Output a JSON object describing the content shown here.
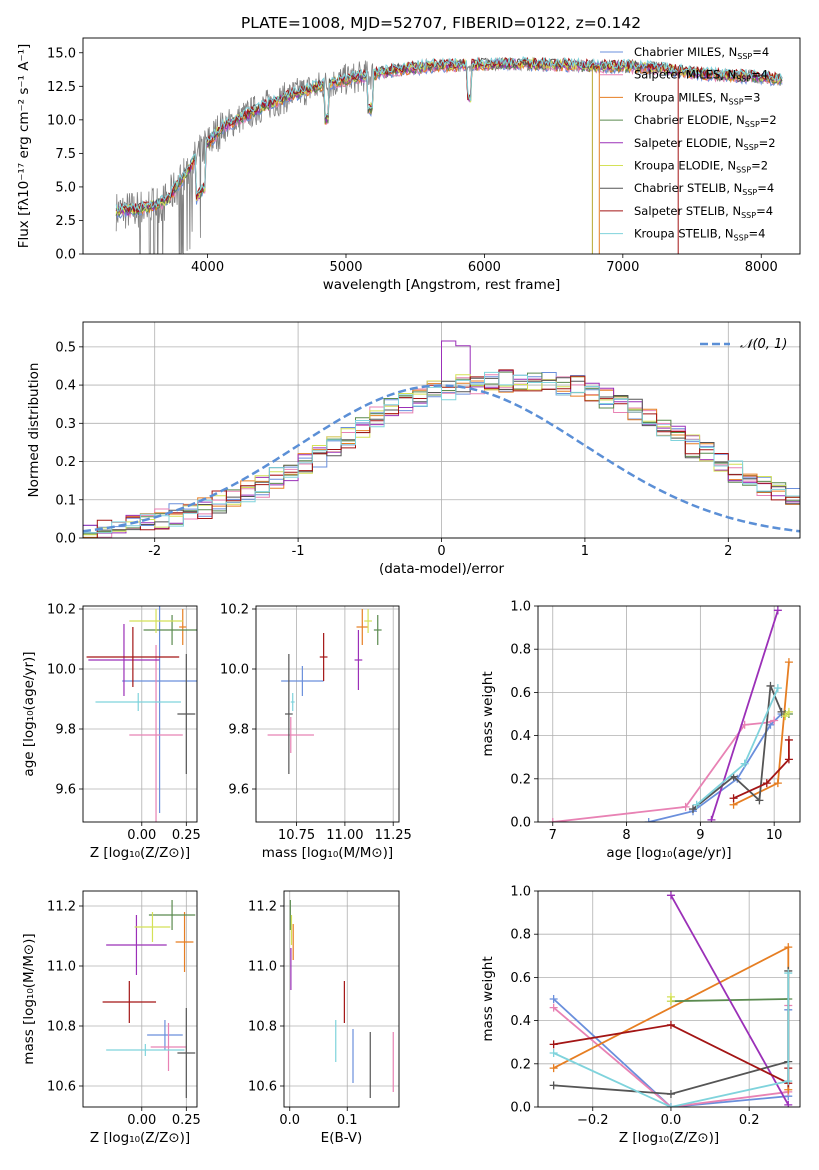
{
  "colors": {
    "Chabrier MILES": "#6a8fdc",
    "Salpeter MILES": "#e882b4",
    "Kroupa MILES": "#e67e22",
    "Chabrier ELODIE": "#5a8a4f",
    "Salpeter ELODIE": "#9b30b8",
    "Kroupa ELODIE": "#d4e157",
    "Chabrier STELIB": "#555555",
    "Salpeter STELIB": "#a31515",
    "Kroupa STELIB": "#7fd3dc",
    "data": "#7f7f7f",
    "normal": "#5b8fd6"
  },
  "chart_data": [
    {
      "type": "line",
      "title": "PLATE=1008, MJD=52707, FIBERID=0122, z=0.142",
      "xlabel": "wavelength [Angstrom, rest frame]",
      "ylabel": "Flux [fλ10⁻¹⁷ erg cm⁻² s⁻¹ A⁻¹]",
      "xlim": [
        3100,
        8280
      ],
      "ylim": [
        0,
        16.1
      ],
      "xticks": [
        4000,
        5000,
        6000,
        7000,
        8000
      ],
      "yticks": [
        0.0,
        2.5,
        5.0,
        7.5,
        10.0,
        12.5,
        15.0
      ],
      "legend": [
        {
          "model": "Chabrier MILES",
          "label": "Chabrier MILES, N",
          "n": "=4"
        },
        {
          "model": "Salpeter MILES",
          "label": "Salpeter MILES, N",
          "n": "=4"
        },
        {
          "model": "Kroupa MILES",
          "label": "Kroupa MILES, N",
          "n": "=3"
        },
        {
          "model": "Chabrier ELODIE",
          "label": "Chabrier ELODIE, N",
          "n": "=2"
        },
        {
          "model": "Salpeter ELODIE",
          "label": "Salpeter ELODIE, N",
          "n": "=2"
        },
        {
          "model": "Kroupa ELODIE",
          "label": "Kroupa ELODIE, N",
          "n": "=2"
        },
        {
          "model": "Chabrier STELIB",
          "label": "Chabrier STELIB, N",
          "n": "=4"
        },
        {
          "model": "Salpeter STELIB",
          "label": "Salpeter STELIB, N",
          "n": "=4"
        },
        {
          "model": "Kroupa STELIB",
          "label": "Kroupa STELIB, N",
          "n": "=4"
        }
      ],
      "legend_sub": "SSP",
      "continuum": {
        "x": [
          3340,
          3500,
          3700,
          3950,
          4100,
          4400,
          4700,
          5000,
          5300,
          5600,
          5900,
          6200,
          6500,
          6800,
          7000,
          7300,
          7600,
          7800,
          8000,
          8150
        ],
        "y": [
          3.2,
          3.3,
          3.9,
          7.6,
          9.4,
          11.0,
          12.2,
          13.0,
          13.6,
          14.0,
          14.1,
          14.2,
          14.1,
          14.0,
          14.0,
          13.8,
          13.4,
          13.3,
          13.2,
          13.0
        ]
      }
    },
    {
      "type": "bar",
      "xlabel": "(data-model)/error",
      "ylabel": "Normed distribution",
      "xlim": [
        -2.5,
        2.5
      ],
      "ylim": [
        0,
        0.565
      ],
      "xticks": [
        -2,
        -1,
        0,
        1,
        2
      ],
      "yticks": [
        0.0,
        0.1,
        0.2,
        0.3,
        0.4,
        0.5
      ],
      "legend": "𝒩(0, 1)",
      "bins": {
        "start": -2.5,
        "width": 0.1
      },
      "envelope": [
        0.02,
        0.025,
        0.03,
        0.035,
        0.045,
        0.05,
        0.06,
        0.07,
        0.08,
        0.095,
        0.11,
        0.12,
        0.135,
        0.155,
        0.175,
        0.195,
        0.215,
        0.24,
        0.265,
        0.29,
        0.315,
        0.335,
        0.355,
        0.37,
        0.385,
        0.39,
        0.4,
        0.405,
        0.405,
        0.41,
        0.41,
        0.41,
        0.405,
        0.4,
        0.395,
        0.385,
        0.37,
        0.355,
        0.335,
        0.315,
        0.29,
        0.265,
        0.24,
        0.22,
        0.195,
        0.175,
        0.155,
        0.135,
        0.12,
        0.105
      ]
    },
    {
      "type": "scatter",
      "xlabel": "Z [log₁₀(Z/Z⊙)]",
      "ylabel": "age  [log₁₀(age/yr)]",
      "xlim": [
        -0.33,
        0.31
      ],
      "ylim": [
        9.49,
        10.21
      ],
      "xticks": [
        "0.00",
        "0.25"
      ],
      "yticks": [
        "9.6",
        "9.8",
        "10.0",
        "10.2"
      ],
      "points": [
        {
          "m": "Chabrier MILES",
          "x": 0.1,
          "y": 9.96,
          "ex": 0.21,
          "ey": 0.44
        },
        {
          "m": "Salpeter MILES",
          "x": 0.08,
          "y": 9.78,
          "ex": 0.15,
          "ey": 0.3
        },
        {
          "m": "Kroupa MILES",
          "x": 0.23,
          "y": 10.14,
          "ex": 0.02,
          "ey": 0.06
        },
        {
          "m": "Chabrier ELODIE",
          "x": 0.17,
          "y": 10.13,
          "ex": 0.16,
          "ey": 0.05
        },
        {
          "m": "Salpeter ELODIE",
          "x": -0.1,
          "y": 10.03,
          "ex": 0.2,
          "ey": 0.12
        },
        {
          "m": "Kroupa ELODIE",
          "x": 0.08,
          "y": 10.16,
          "ex": 0.15,
          "ey": 0.04
        },
        {
          "m": "Chabrier STELIB",
          "x": 0.25,
          "y": 9.85,
          "ex": 0.05,
          "ey": 0.2
        },
        {
          "m": "Salpeter STELIB",
          "x": -0.05,
          "y": 10.04,
          "ex": 0.26,
          "ey": 0.1
        },
        {
          "m": "Kroupa STELIB",
          "x": -0.02,
          "y": 9.89,
          "ex": 0.24,
          "ey": 0.03
        }
      ]
    },
    {
      "type": "scatter",
      "xlabel": "mass [log₁₀(M/M⊙)]",
      "xlim": [
        10.54,
        11.28
      ],
      "ylim": [
        9.49,
        10.21
      ],
      "xticks": [
        "10.75",
        "11.00",
        "11.25"
      ],
      "yticks": [
        "9.6",
        "9.8",
        "10.0",
        "10.2"
      ],
      "points": [
        {
          "m": "Chabrier MILES",
          "x": 10.78,
          "y": 9.96,
          "ex": 0.11,
          "ey": 0.05
        },
        {
          "m": "Salpeter MILES",
          "x": 10.72,
          "y": 9.78,
          "ex": 0.12,
          "ey": 0.06
        },
        {
          "m": "Kroupa MILES",
          "x": 11.09,
          "y": 10.14,
          "ex": 0.03,
          "ey": 0.06
        },
        {
          "m": "Chabrier ELODIE",
          "x": 11.17,
          "y": 10.13,
          "ex": 0.02,
          "ey": 0.05
        },
        {
          "m": "Salpeter ELODIE",
          "x": 11.07,
          "y": 10.03,
          "ex": 0.02,
          "ey": 0.1
        },
        {
          "m": "Kroupa ELODIE",
          "x": 11.12,
          "y": 10.16,
          "ex": 0.02,
          "ey": 0.04
        },
        {
          "m": "Chabrier STELIB",
          "x": 10.71,
          "y": 9.85,
          "ex": 0.02,
          "ey": 0.2
        },
        {
          "m": "Salpeter STELIB",
          "x": 10.89,
          "y": 10.04,
          "ex": 0.02,
          "ey": 0.08
        },
        {
          "m": "Kroupa STELIB",
          "x": 10.73,
          "y": 9.89,
          "ex": 0.01,
          "ey": 0.03
        }
      ]
    },
    {
      "type": "line",
      "xlabel": "age  [log₁₀(age/yr)]",
      "ylabel": "mass weight",
      "xlim": [
        6.8,
        10.35
      ],
      "ylim": [
        0,
        1.0
      ],
      "xticks": [
        "7",
        "8",
        "9",
        "10"
      ],
      "yticks": [
        "0.0",
        "0.2",
        "0.4",
        "0.6",
        "0.8",
        "1.0"
      ],
      "series": [
        {
          "m": "Chabrier MILES",
          "x": [
            8.3,
            8.9,
            9.5,
            9.95,
            10.1
          ],
          "y": [
            0.0,
            0.05,
            0.2,
            0.45,
            0.5
          ]
        },
        {
          "m": "Salpeter MILES",
          "x": [
            7.0,
            8.8,
            9.6,
            9.9,
            10.0
          ],
          "y": [
            0.0,
            0.07,
            0.45,
            0.46,
            0.47
          ]
        },
        {
          "m": "Kroupa MILES",
          "x": [
            9.45,
            10.05,
            10.2
          ],
          "y": [
            0.08,
            0.18,
            0.74
          ]
        },
        {
          "m": "Chabrier ELODIE",
          "x": [
            10.15,
            10.2
          ],
          "y": [
            0.5,
            0.5
          ]
        },
        {
          "m": "Salpeter ELODIE",
          "x": [
            9.15,
            10.05
          ],
          "y": [
            0.01,
            0.98
          ]
        },
        {
          "m": "Kroupa ELODIE",
          "x": [
            10.15,
            10.2
          ],
          "y": [
            0.49,
            0.51
          ]
        },
        {
          "m": "Chabrier STELIB",
          "x": [
            8.9,
            9.45,
            9.8,
            9.95,
            10.1
          ],
          "y": [
            0.06,
            0.21,
            0.1,
            0.63,
            0.51
          ]
        },
        {
          "m": "Salpeter STELIB",
          "x": [
            9.45,
            9.9,
            10.2,
            10.2
          ],
          "y": [
            0.11,
            0.18,
            0.29,
            0.38
          ]
        },
        {
          "m": "Kroupa STELIB",
          "x": [
            8.95,
            9.6,
            10.05
          ],
          "y": [
            0.08,
            0.27,
            0.62
          ]
        }
      ]
    },
    {
      "type": "scatter",
      "xlabel": "Z [log₁₀(Z/Z⊙)]",
      "ylabel": "mass [log₁₀(M/M⊙)]",
      "xlim": [
        -0.33,
        0.31
      ],
      "ylim": [
        10.53,
        11.25
      ],
      "xticks": [
        "0.00",
        "0.25"
      ],
      "yticks": [
        "10.6",
        "10.8",
        "11.0",
        "11.2"
      ],
      "points": [
        {
          "m": "Chabrier MILES",
          "x": 0.13,
          "y": 10.77,
          "ex": 0.1,
          "ey": 0.05
        },
        {
          "m": "Salpeter MILES",
          "x": 0.15,
          "y": 10.73,
          "ex": 0.1,
          "ey": 0.08
        },
        {
          "m": "Kroupa MILES",
          "x": 0.24,
          "y": 11.08,
          "ex": 0.05,
          "ey": 0.1
        },
        {
          "m": "Chabrier ELODIE",
          "x": 0.17,
          "y": 11.17,
          "ex": 0.13,
          "ey": 0.05
        },
        {
          "m": "Salpeter ELODIE",
          "x": -0.03,
          "y": 11.07,
          "ex": 0.17,
          "ey": 0.1
        },
        {
          "m": "Kroupa ELODIE",
          "x": 0.06,
          "y": 11.13,
          "ex": 0.1,
          "ey": 0.05
        },
        {
          "m": "Chabrier STELIB",
          "x": 0.25,
          "y": 10.71,
          "ex": 0.05,
          "ey": 0.15
        },
        {
          "m": "Salpeter STELIB",
          "x": -0.07,
          "y": 10.88,
          "ex": 0.15,
          "ey": 0.07
        },
        {
          "m": "Kroupa STELIB",
          "x": 0.02,
          "y": 10.72,
          "ex": 0.22,
          "ey": 0.02
        }
      ]
    },
    {
      "type": "scatter",
      "xlabel": "E(B-V)",
      "xlim": [
        -0.01,
        0.19
      ],
      "ylim": [
        10.53,
        11.25
      ],
      "xticks": [
        "0.0",
        "0.1"
      ],
      "yticks": [
        "10.6",
        "10.8",
        "11.0",
        "11.2"
      ],
      "points": [
        {
          "m": "Chabrier MILES",
          "x": 0.11,
          "y": 10.7,
          "ex": 0,
          "ey": 0.09
        },
        {
          "m": "Salpeter MILES",
          "x": 0.18,
          "y": 10.68,
          "ex": 0,
          "ey": 0.1
        },
        {
          "m": "Kroupa MILES",
          "x": 0.006,
          "y": 11.08,
          "ex": 0,
          "ey": 0.06
        },
        {
          "m": "Chabrier ELODIE",
          "x": 0.001,
          "y": 11.17,
          "ex": 0,
          "ey": 0.05
        },
        {
          "m": "Salpeter ELODIE",
          "x": 0.002,
          "y": 10.99,
          "ex": 0,
          "ey": 0.07
        },
        {
          "m": "Kroupa ELODIE",
          "x": 0.003,
          "y": 11.12,
          "ex": 0,
          "ey": 0.05
        },
        {
          "m": "Chabrier STELIB",
          "x": 0.14,
          "y": 10.67,
          "ex": 0,
          "ey": 0.11
        },
        {
          "m": "Salpeter STELIB",
          "x": 0.095,
          "y": 10.88,
          "ex": 0,
          "ey": 0.07
        },
        {
          "m": "Kroupa STELIB",
          "x": 0.08,
          "y": 10.75,
          "ex": 0,
          "ey": 0.07
        }
      ]
    },
    {
      "type": "line",
      "xlabel": "Z [log₁₀(Z/Z⊙)]",
      "ylabel": "mass weight",
      "xlim": [
        -0.34,
        0.33
      ],
      "ylim": [
        0,
        1.0
      ],
      "xticks": [
        "−0.2",
        "0.0",
        "0.2"
      ],
      "yticks": [
        "0.0",
        "0.2",
        "0.4",
        "0.6",
        "0.8",
        "1.0"
      ],
      "series": [
        {
          "m": "Chabrier MILES",
          "x": [
            -0.3,
            0.0,
            0.3,
            0.3
          ],
          "y": [
            0.5,
            0.0,
            0.05,
            0.45
          ]
        },
        {
          "m": "Salpeter MILES",
          "x": [
            -0.3,
            0.0,
            0.3,
            0.3
          ],
          "y": [
            0.46,
            0.0,
            0.07,
            0.47
          ]
        },
        {
          "m": "Kroupa MILES",
          "x": [
            -0.3,
            0.3,
            0.3
          ],
          "y": [
            0.18,
            0.74,
            0.08
          ]
        },
        {
          "m": "Chabrier ELODIE",
          "x": [
            0.0,
            0.3
          ],
          "y": [
            0.49,
            0.5
          ]
        },
        {
          "m": "Salpeter ELODIE",
          "x": [
            0.0,
            0.3
          ],
          "y": [
            0.98,
            0.01
          ]
        },
        {
          "m": "Kroupa ELODIE",
          "x": [
            0.0,
            0.0
          ],
          "y": [
            0.49,
            0.51
          ]
        },
        {
          "m": "Chabrier STELIB",
          "x": [
            -0.3,
            0.0,
            0.3,
            0.3
          ],
          "y": [
            0.1,
            0.06,
            0.21,
            0.63
          ]
        },
        {
          "m": "Salpeter STELIB",
          "x": [
            -0.3,
            0.0,
            0.3,
            0.3
          ],
          "y": [
            0.29,
            0.38,
            0.11,
            0.18
          ]
        },
        {
          "m": "Kroupa STELIB",
          "x": [
            -0.3,
            0.0,
            0.3,
            0.3
          ],
          "y": [
            0.25,
            0.0,
            0.12,
            0.62
          ]
        }
      ]
    }
  ]
}
